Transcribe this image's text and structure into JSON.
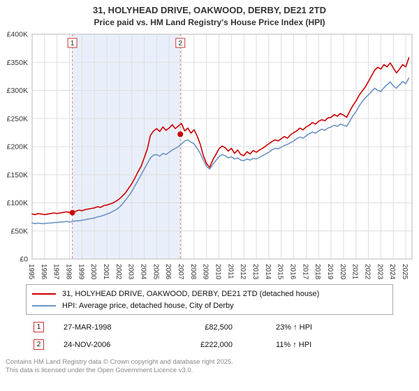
{
  "title": {
    "line1": "31, HOLYHEAD DRIVE, OAKWOOD, DERBY, DE21 2TD",
    "line2": "Price paid vs. HM Land Registry's House Price Index (HPI)"
  },
  "chart_data": {
    "type": "line",
    "title": "Price paid vs. HM Land Registry's House Price Index (HPI)",
    "xlabel": "",
    "ylabel": "",
    "xlim": [
      1995,
      2025.5
    ],
    "ylim": [
      0,
      400
    ],
    "x_start": 1995,
    "x_step": 0.25,
    "grid": true,
    "band_color": "#e9effa",
    "x_ticks": [
      1995,
      1996,
      1997,
      1998,
      1999,
      2000,
      2001,
      2002,
      2003,
      2004,
      2005,
      2006,
      2007,
      2008,
      2009,
      2010,
      2011,
      2012,
      2013,
      2014,
      2015,
      2016,
      2017,
      2018,
      2019,
      2020,
      2021,
      2022,
      2023,
      2024,
      2025
    ],
    "y_ticks": {
      "step": 50,
      "labels": [
        "£0",
        "£50K",
        "£100K",
        "£150K",
        "£200K",
        "£250K",
        "£300K",
        "£350K",
        "£400K"
      ]
    },
    "series": [
      {
        "id": "price-paid",
        "name": "31, HOLYHEAD DRIVE, OAKWOOD, DERBY, DE21 2TD (detached house)",
        "color": "#cc0000",
        "values": [
          80,
          79,
          81,
          80,
          79,
          80,
          81,
          82,
          81,
          82,
          83,
          84,
          83,
          84,
          85,
          87,
          86,
          88,
          89,
          90,
          91,
          93,
          92,
          95,
          96,
          98,
          100,
          103,
          107,
          112,
          118,
          126,
          134,
          144,
          155,
          165,
          180,
          196,
          220,
          228,
          232,
          227,
          235,
          229,
          233,
          239,
          232,
          237,
          241,
          228,
          233,
          224,
          230,
          219,
          204,
          184,
          170,
          163,
          176,
          186,
          196,
          201,
          198,
          192,
          197,
          188,
          194,
          186,
          184,
          191,
          187,
          193,
          190,
          194,
          197,
          201,
          205,
          209,
          212,
          210,
          214,
          218,
          215,
          221,
          225,
          228,
          233,
          230,
          235,
          238,
          243,
          240,
          245,
          248,
          246,
          251,
          252,
          257,
          254,
          259,
          256,
          252,
          263,
          273,
          281,
          291,
          299,
          306,
          316,
          326,
          336,
          341,
          338,
          346,
          342,
          349,
          340,
          331,
          338,
          346,
          342,
          358
        ]
      },
      {
        "id": "hpi",
        "name": "HPI: Average price, detached house, City of Derby",
        "color": "#6d93c6",
        "values": [
          64,
          63,
          64,
          63,
          63,
          64,
          64,
          65,
          65,
          66,
          66,
          67,
          66,
          67,
          68,
          68,
          69,
          70,
          71,
          72,
          73,
          75,
          76,
          78,
          80,
          82,
          85,
          88,
          92,
          98,
          105,
          112,
          120,
          130,
          140,
          150,
          160,
          170,
          180,
          185,
          186,
          183,
          188,
          186,
          190,
          194,
          197,
          200,
          205,
          210,
          212,
          208,
          205,
          197,
          188,
          176,
          165,
          160,
          168,
          175,
          182,
          186,
          184,
          180,
          182,
          178,
          180,
          176,
          175,
          178,
          176,
          179,
          178,
          181,
          184,
          187,
          190,
          194,
          197,
          196,
          199,
          202,
          204,
          207,
          210,
          214,
          217,
          215,
          219,
          223,
          226,
          224,
          228,
          231,
          229,
          233,
          235,
          238,
          236,
          240,
          238,
          236,
          245,
          255,
          262,
          272,
          280,
          287,
          292,
          298,
          304,
          300,
          298,
          305,
          310,
          315,
          308,
          304,
          310,
          316,
          312,
          322
        ]
      }
    ],
    "sales": [
      {
        "num": "1",
        "x": 1998.23,
        "price_k": 82.5
      },
      {
        "num": "2",
        "x": 2006.9,
        "price_k": 222
      }
    ]
  },
  "legend": {
    "items": [
      {
        "color": "#cc0000",
        "label": "31, HOLYHEAD DRIVE, OAKWOOD, DERBY, DE21 2TD (detached house)"
      },
      {
        "color": "#6d93c6",
        "label": "HPI: Average price, detached house, City of Derby"
      }
    ]
  },
  "transactions": [
    {
      "num": "1",
      "date": "27-MAR-1998",
      "price": "£82,500",
      "hpi": "23% ↑ HPI"
    },
    {
      "num": "2",
      "date": "24-NOV-2006",
      "price": "£222,000",
      "hpi": "11% ↑ HPI"
    }
  ],
  "footer": {
    "line1": "Contains HM Land Registry data © Crown copyright and database right 2025.",
    "line2": "This data is licensed under the Open Government Licence v3.0."
  }
}
